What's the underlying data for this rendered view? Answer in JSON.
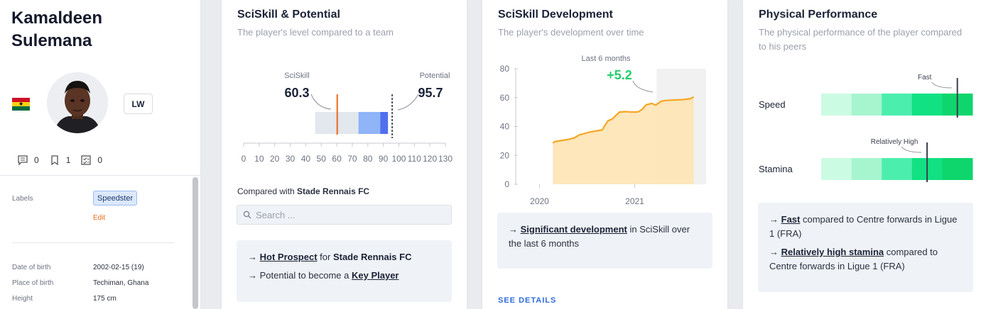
{
  "player": {
    "name_line1": "Kamaldeen",
    "name_line2": "Sulemana",
    "position": "LW",
    "flag_icon": "ghana-flag-icon",
    "counters": [
      {
        "icon": "comment-icon",
        "value": "0"
      },
      {
        "icon": "bookmark-icon",
        "value": "1"
      },
      {
        "icon": "checklist-icon",
        "value": "0"
      }
    ],
    "labels_heading": "Labels",
    "label_chip": "Speedster",
    "edit_label": "Edit",
    "dob_label": "Date of birth",
    "dob_value": "2002-02-15 (19)",
    "pob_label": "Place of birth",
    "pob_value": "Techiman, Ghana",
    "height_label": "Height",
    "height_value": "175 cm"
  },
  "potential_card": {
    "title": "SciSkill & Potential",
    "subtitle": "The player's level compared to a team",
    "compared_prefix": "Compared with",
    "compared_team": "Stade Rennais FC",
    "search_placeholder": "Search ...",
    "callout": {
      "line1_link": "Hot Prospect",
      "line1_mid": "for",
      "line1_team": "Stade Rennais FC",
      "line2_text": "Potential to become a",
      "line2_link": "Key Player"
    }
  },
  "development_card": {
    "title": "SciSkill Development",
    "subtitle": "The player's development over time",
    "callout": {
      "link": "Significant development",
      "rest": "in SciSkill over the last 6 months"
    },
    "see_details": "SEE DETAILS"
  },
  "physical_card": {
    "title": "Physical Performance",
    "subtitle": "The physical performance of the player compared to his peers",
    "callout": {
      "line1_link": "Fast",
      "line1_rest": "compared to Centre forwards in Ligue 1 (FRA)",
      "line2_link": "Relatively high stamina",
      "line2_rest": "compared to Centre forwards in Ligue 1 (FRA)"
    }
  },
  "chart_data": [
    {
      "type": "bar",
      "title": "",
      "x_ticks": [
        0,
        10,
        20,
        30,
        40,
        50,
        60,
        70,
        80,
        90,
        100,
        110,
        120,
        130
      ],
      "xlim": [
        0,
        130
      ],
      "sciskill_label": "SciSkill",
      "sciskill_value": 60.3,
      "potential_label": "Potential",
      "potential_value": 95.7,
      "team_ranges": [
        {
          "from": 46,
          "to": 74,
          "color": "#e3e7ee"
        },
        {
          "from": 74,
          "to": 88,
          "color": "#8fb4f7"
        },
        {
          "from": 88,
          "to": 93,
          "color": "#4f6ff0"
        }
      ],
      "marker_colors": {
        "sciskill": "#ea6a18",
        "potential": "#1b2236"
      }
    },
    {
      "type": "area",
      "annotation_window": "Last 6 months",
      "annotation_change": "+5.2",
      "y_ticks": [
        0,
        20,
        40,
        60,
        80
      ],
      "ylim": [
        0,
        80
      ],
      "x_tick_labels": [
        "2020",
        "2021"
      ],
      "x_tick_values": [
        2020.0,
        2021.0
      ],
      "xlim": [
        2019.75,
        2021.75
      ],
      "highlight_from": 2021.23,
      "color": "#f5a623",
      "fill": "#fde4b4",
      "change_color": "#1fcf6a",
      "points": [
        [
          2020.14,
          28.5
        ],
        [
          2020.16,
          29.5
        ],
        [
          2020.22,
          30.2
        ],
        [
          2020.3,
          31.0
        ],
        [
          2020.36,
          32.0
        ],
        [
          2020.42,
          34.2
        ],
        [
          2020.47,
          35.1
        ],
        [
          2020.52,
          36.0
        ],
        [
          2020.6,
          37.0
        ],
        [
          2020.66,
          37.6
        ],
        [
          2020.68,
          40.0
        ],
        [
          2020.7,
          42.0
        ],
        [
          2020.72,
          44.0
        ],
        [
          2020.76,
          45.0
        ],
        [
          2020.8,
          47.5
        ],
        [
          2020.84,
          50.0
        ],
        [
          2020.9,
          50.3
        ],
        [
          2020.98,
          50.0
        ],
        [
          2021.0,
          50.0
        ],
        [
          2021.04,
          50.2
        ],
        [
          2021.08,
          52.0
        ],
        [
          2021.12,
          55.0
        ],
        [
          2021.18,
          56.0
        ],
        [
          2021.22,
          54.8
        ],
        [
          2021.28,
          57.5
        ],
        [
          2021.32,
          58.0
        ],
        [
          2021.4,
          58.3
        ],
        [
          2021.5,
          58.6
        ],
        [
          2021.58,
          59.2
        ],
        [
          2021.62,
          60.4
        ]
      ]
    },
    {
      "type": "bar",
      "metrics": [
        {
          "name": "Speed",
          "label": "Fast",
          "value": 0.9
        },
        {
          "name": "Stamina",
          "label": "Relatively High",
          "value": 0.7
        }
      ],
      "segment_colors": [
        "#ccfbe3",
        "#a6f5cf",
        "#4ceeae",
        "#11e183",
        "#0ed66c"
      ]
    }
  ]
}
